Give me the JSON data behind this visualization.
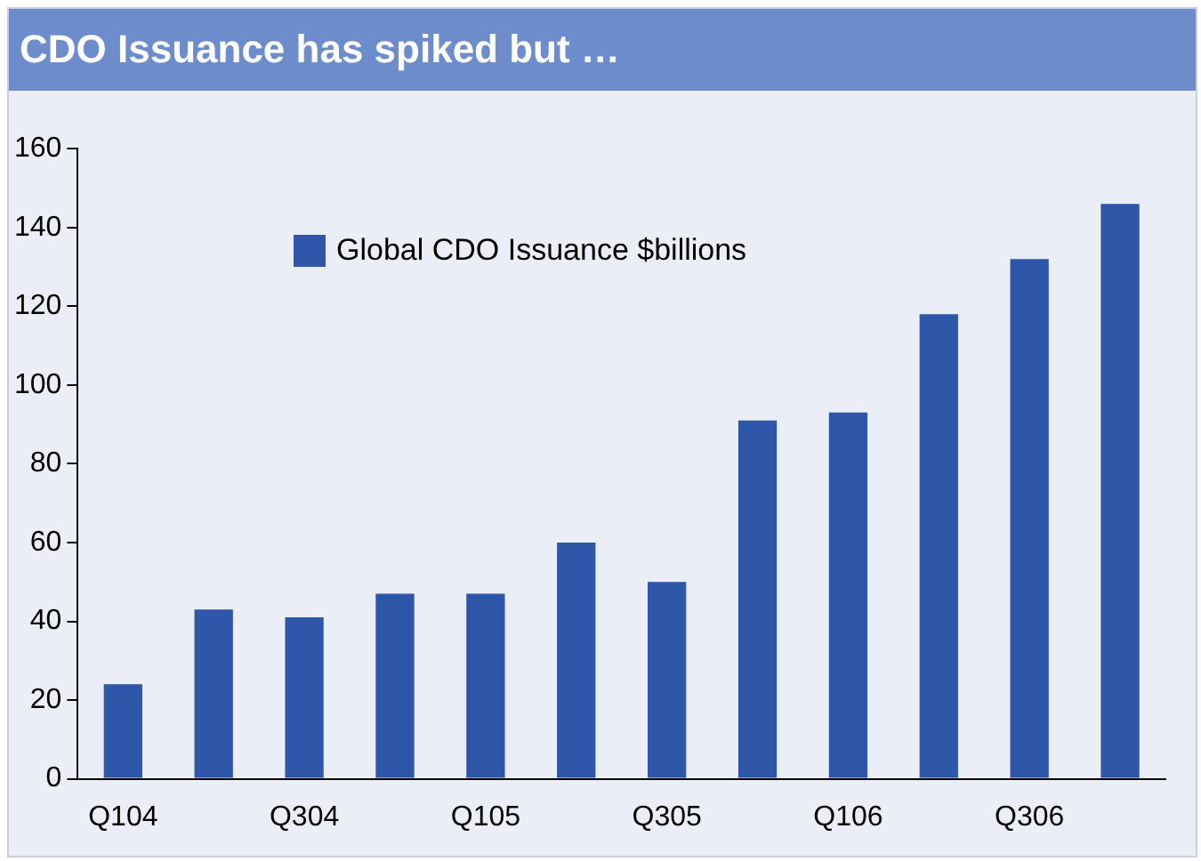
{
  "chart_data": {
    "type": "bar",
    "title": "CDO Issuance has spiked but …",
    "categories": [
      "Q104",
      null,
      "Q304",
      null,
      "Q105",
      null,
      "Q305",
      null,
      "Q106",
      null,
      "Q306",
      null
    ],
    "series": [
      {
        "name": "Global CDO Issuance $billions",
        "color": "#2f57a9",
        "values": [
          24,
          43,
          41,
          47,
          47,
          60,
          50,
          91,
          93,
          118,
          132,
          146
        ]
      }
    ],
    "ylim": [
      0,
      160
    ],
    "yticks": [
      0,
      20,
      40,
      60,
      80,
      100,
      120,
      140,
      160
    ],
    "grid": false,
    "legend": "top left"
  }
}
